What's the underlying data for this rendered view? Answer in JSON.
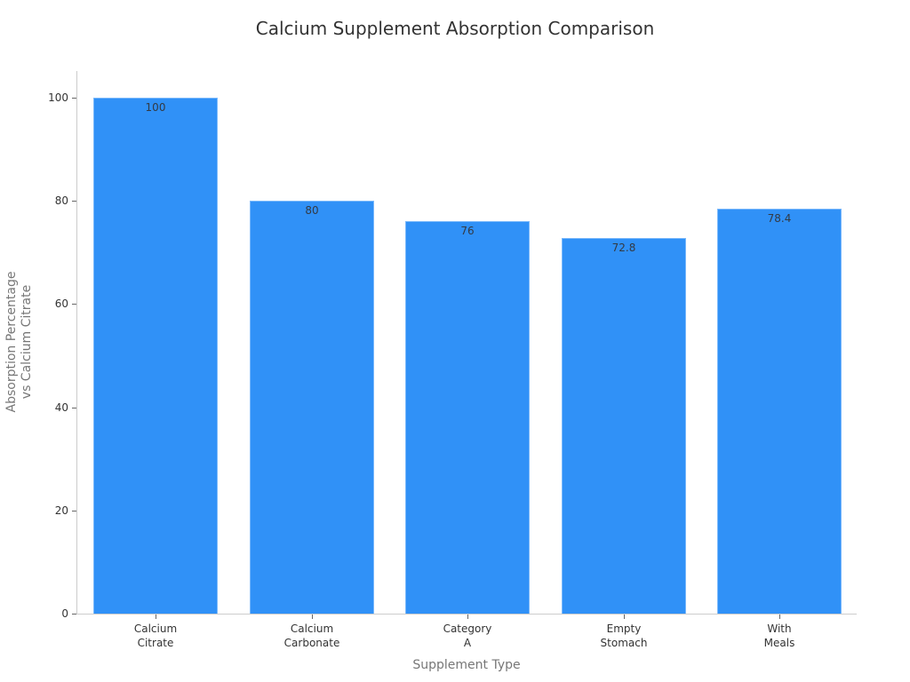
{
  "chart_data": {
    "type": "bar",
    "title": "Calcium Supplement Absorption Comparison",
    "xlabel": "Supplement Type",
    "ylabel": "Absorption Percentage\nvs Calcium Citrate",
    "categories": [
      "Calcium\nCitrate",
      "Calcium\nCarbonate",
      "Category\nA",
      "Empty\nStomach",
      "With\nMeals"
    ],
    "values": [
      100,
      80,
      76,
      72.8,
      78.4
    ],
    "value_labels": [
      "100",
      "80",
      "76",
      "72.8",
      "78.4"
    ],
    "yticks": [
      0,
      20,
      40,
      60,
      80,
      100
    ],
    "ylim": [
      0,
      105
    ],
    "grid": false,
    "legend": null,
    "bar_color": "#3091f7"
  }
}
